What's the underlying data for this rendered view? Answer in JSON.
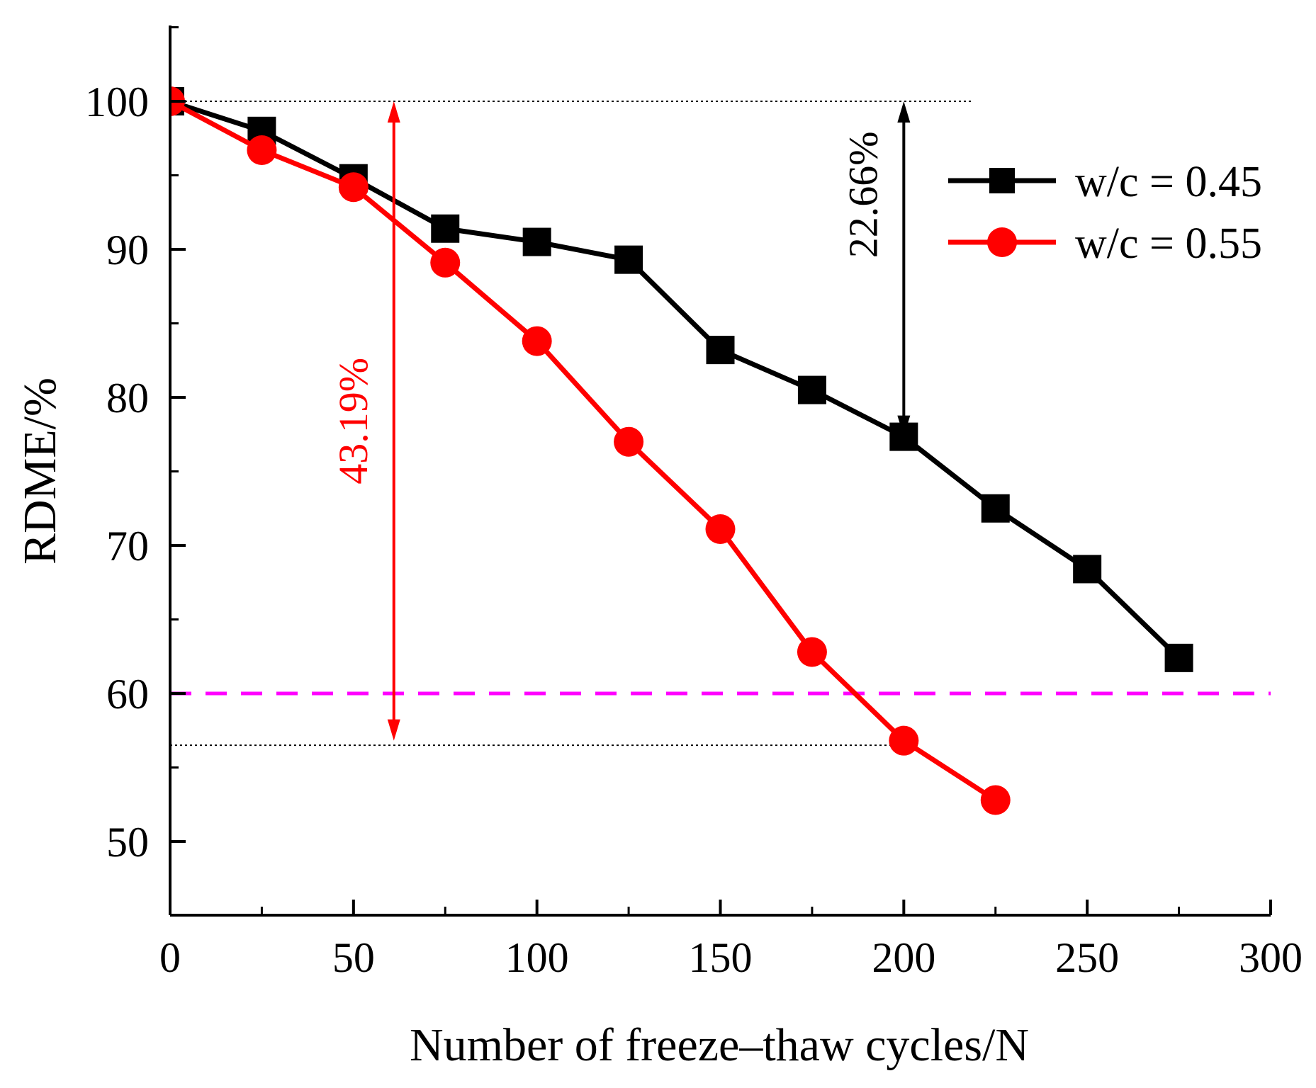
{
  "chart_data": {
    "type": "line",
    "xlabel": "Number of freeze–thaw cycles/N",
    "ylabel": "RDME/%",
    "xlim": [
      0,
      300
    ],
    "ylim": [
      45,
      105
    ],
    "x_ticks": [
      0,
      50,
      100,
      150,
      200,
      250,
      300
    ],
    "x_tick_labels": [
      "0",
      "50",
      "100",
      "150",
      "200",
      "250",
      "300"
    ],
    "y_ticks": [
      50,
      60,
      70,
      80,
      90,
      100
    ],
    "y_tick_labels": [
      "50",
      "60",
      "70",
      "80",
      "90",
      "100"
    ],
    "grid": false,
    "legend_position": "top-right",
    "series": [
      {
        "name": "w/c = 0.45",
        "color": "#000000",
        "marker": "square",
        "x": [
          0,
          25,
          50,
          75,
          100,
          125,
          150,
          175,
          200,
          225,
          250,
          275
        ],
        "values": [
          100,
          98,
          94.8,
          91.4,
          90.5,
          89.3,
          83.2,
          80.5,
          77.34,
          72.5,
          68.4,
          62.4
        ]
      },
      {
        "name": "w/c = 0.55",
        "color": "#ff0000",
        "marker": "circle",
        "x": [
          0,
          25,
          50,
          75,
          100,
          125,
          150,
          175,
          200,
          225
        ],
        "values": [
          100,
          96.7,
          94.2,
          89.1,
          83.8,
          77.0,
          71.1,
          62.8,
          56.81,
          52.8
        ]
      }
    ],
    "reference_lines": [
      {
        "name": "threshold",
        "y": 60,
        "color": "#ff00ff",
        "style": "dashed",
        "x_range": [
          0,
          300
        ]
      },
      {
        "name": "top-dotted",
        "y": 100,
        "color": "#000000",
        "style": "dotted",
        "x_range": [
          0,
          219
        ]
      },
      {
        "name": "bottom-dotted",
        "y": 56.5,
        "color": "#000000",
        "style": "dotted",
        "x_range": [
          0,
          200
        ]
      }
    ],
    "annotations": [
      {
        "text": "43.19%",
        "color": "#ff0000",
        "arrow_x": 61,
        "y_from": 100,
        "y_to": 56.81
      },
      {
        "text": "22.66%",
        "color": "#000000",
        "arrow_x": 200,
        "y_from": 100,
        "y_to": 77.34
      }
    ]
  }
}
